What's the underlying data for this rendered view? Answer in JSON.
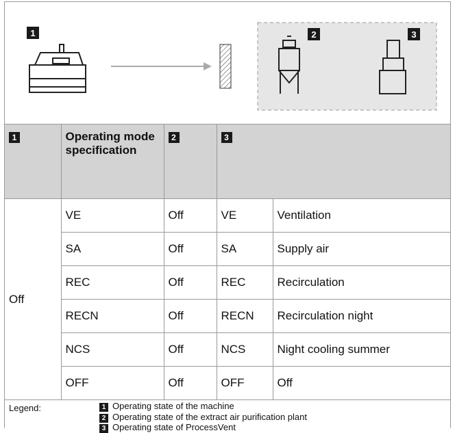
{
  "diagram": {
    "badges": [
      "1",
      "2",
      "3"
    ]
  },
  "table": {
    "header": {
      "badge_machine": "1",
      "spec": "Operating mode specification",
      "badge_plant": "2",
      "badge_vent": "3"
    },
    "machine_state": "Off",
    "rows": [
      [
        "VE",
        "Off",
        "VE",
        "Ventilation"
      ],
      [
        "SA",
        "Off",
        "SA",
        "Supply air"
      ],
      [
        "REC",
        "Off",
        "REC",
        "Recirculation"
      ],
      [
        "RECN",
        "Off",
        "RECN",
        "Recirculation night"
      ],
      [
        "NCS",
        "Off",
        "NCS",
        "Night cooling summer"
      ],
      [
        "OFF",
        "Off",
        "OFF",
        "Off"
      ]
    ]
  },
  "legend": {
    "label": "Legend:",
    "items": [
      {
        "number": "1",
        "text": "Operating state of the machine"
      },
      {
        "number": "2",
        "text": "Operating state of the extract air purification plant"
      },
      {
        "number": "3",
        "text": "Operating state of ProcessVent"
      }
    ]
  }
}
